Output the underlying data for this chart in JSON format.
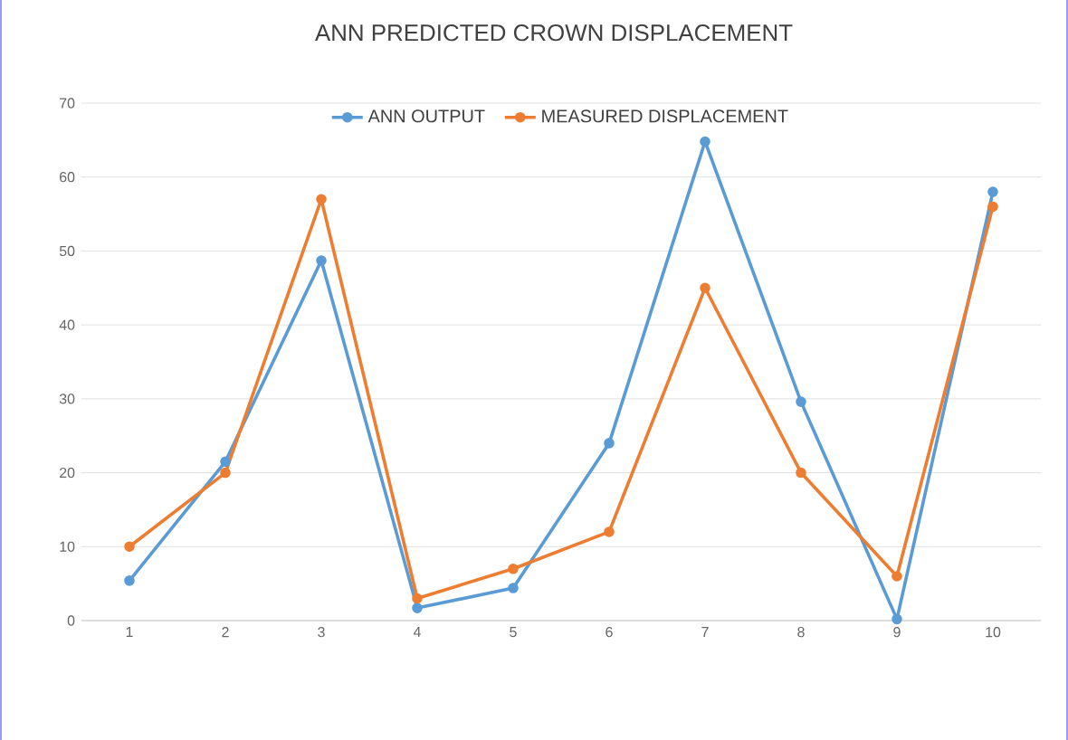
{
  "chart_data": {
    "type": "line",
    "title": "ANN PREDICTED CROWN DISPLACEMENT",
    "categories": [
      "1",
      "2",
      "3",
      "4",
      "5",
      "6",
      "7",
      "8",
      "9",
      "10"
    ],
    "series": [
      {
        "name": "ANN OUTPUT",
        "color": "#5b9bd5",
        "values": [
          5.4,
          21.5,
          48.7,
          1.7,
          4.4,
          24,
          64.8,
          29.6,
          0.2,
          58
        ]
      },
      {
        "name": "MEASURED DISPLACEMENT",
        "color": "#ed7d31",
        "values": [
          10,
          20,
          57,
          3,
          7,
          12,
          45,
          20,
          6,
          56
        ]
      }
    ],
    "ylim": [
      0,
      70
    ],
    "yticks": [
      0,
      10,
      20,
      30,
      40,
      50,
      60,
      70
    ],
    "grid": "y",
    "legend": "top",
    "marker": "circle",
    "line_style": "solid"
  }
}
